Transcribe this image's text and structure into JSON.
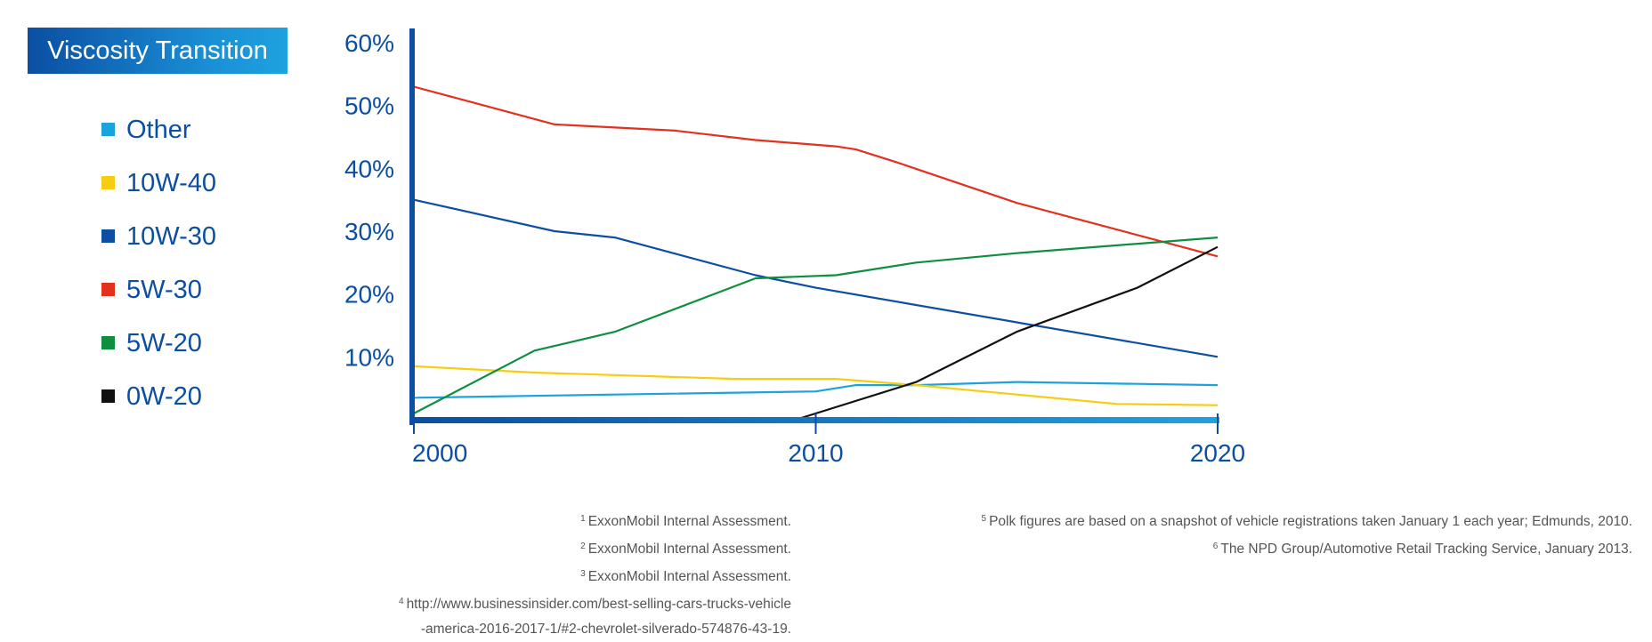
{
  "title": "Viscosity Transition",
  "legend": [
    {
      "name": "Other",
      "color": "#1ba3dd"
    },
    {
      "name": "10W-40",
      "color": "#f7cd11"
    },
    {
      "name": "10W-30",
      "color": "#0b4ea2"
    },
    {
      "name": "5W-30",
      "color": "#e2311d"
    },
    {
      "name": "5W-20",
      "color": "#0e8f3e"
    },
    {
      "name": "0W-20",
      "color": "#111111"
    }
  ],
  "footnotes_left": [
    {
      "num": "1",
      "text": "ExxonMobil Internal Assessment."
    },
    {
      "num": "2",
      "text": "ExxonMobil Internal Assessment."
    },
    {
      "num": "3",
      "text": "ExxonMobil Internal Assessment."
    },
    {
      "num": "4",
      "text": "http://www.businessinsider.com/best-selling-cars-trucks-vehicle"
    },
    {
      "num": "",
      "text": "-america-2016-2017-1/#2-chevrolet-silverado-574876-43-19."
    }
  ],
  "footnotes_right": [
    {
      "num": "5",
      "text": "Polk figures are based on a snapshot of vehicle registrations taken January 1 each year; Edmunds, 2010."
    },
    {
      "num": "6",
      "text": "The NPD Group/Automotive Retail Tracking Service, January 2013."
    }
  ],
  "chart_data": {
    "type": "line",
    "title": "Viscosity Transition",
    "xlabel": "",
    "ylabel": "",
    "xlim": [
      2000,
      2020
    ],
    "ylim": [
      0,
      60
    ],
    "x_ticks": [
      2000,
      2010,
      2020
    ],
    "x_tick_labels": [
      "2000",
      "2010",
      "2020"
    ],
    "y_ticks": [
      10,
      20,
      30,
      40,
      50,
      60
    ],
    "y_tick_labels": [
      "10%",
      "20%",
      "30%",
      "40%",
      "50%",
      "60%"
    ],
    "grid": false,
    "legend_position": "left",
    "series": [
      {
        "name": "Other",
        "color": "#1ba3dd",
        "x": [
          2000,
          2005,
          2010,
          2011,
          2012.5,
          2015,
          2020
        ],
        "y": [
          3.5,
          4,
          4.5,
          5.5,
          5.5,
          6,
          5.5
        ]
      },
      {
        "name": "10W-40",
        "color": "#f7cd11",
        "x": [
          2000,
          2003,
          2008,
          2010.5,
          2012.5,
          2015,
          2017.5,
          2020
        ],
        "y": [
          8.5,
          7.5,
          6.5,
          6.5,
          5.5,
          4,
          2.5,
          2.3
        ]
      },
      {
        "name": "10W-30",
        "color": "#0b4ea2",
        "x": [
          2000,
          2003.5,
          2005,
          2008.5,
          2010,
          2020
        ],
        "y": [
          35,
          30,
          29,
          23,
          21,
          10
        ]
      },
      {
        "name": "5W-30",
        "color": "#e2311d",
        "x": [
          2000,
          2003.5,
          2005,
          2006.5,
          2008.5,
          2010.5,
          2011,
          2012,
          2015,
          2020
        ],
        "y": [
          53,
          47,
          46.5,
          46,
          44.5,
          43.5,
          43,
          41,
          34.5,
          26
        ]
      },
      {
        "name": "5W-20",
        "color": "#0e8f3e",
        "x": [
          2000,
          2003,
          2005,
          2008.5,
          2010.5,
          2012.5,
          2015,
          2020
        ],
        "y": [
          1,
          11,
          14,
          22.5,
          23,
          25,
          26.5,
          29
        ]
      },
      {
        "name": "0W-20",
        "color": "#111111",
        "x": [
          2009.5,
          2012.5,
          2015,
          2018,
          2020
        ],
        "y": [
          0,
          6,
          14,
          21,
          27.5
        ]
      }
    ]
  }
}
